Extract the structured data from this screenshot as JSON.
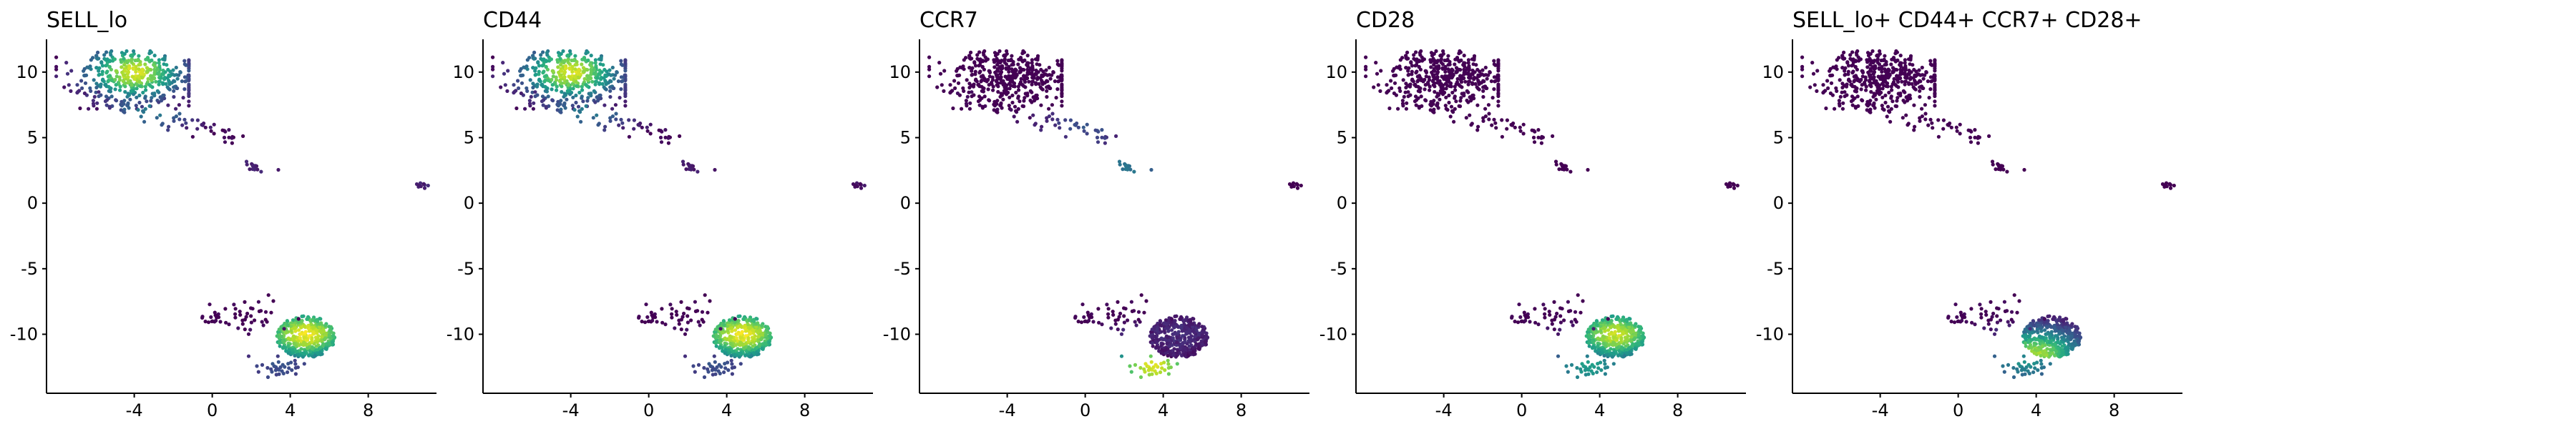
{
  "chart_data": [
    {
      "type": "scatter",
      "title": "SELL_lo",
      "xlabel": "",
      "ylabel": "",
      "xlim": [
        -8.5,
        11.5
      ],
      "ylim": [
        -14.5,
        12.5
      ],
      "x_ticks": [
        -4,
        0,
        4,
        8
      ],
      "x_tick_labels": [
        "-4",
        "0",
        "4",
        "8"
      ],
      "y_ticks": [
        10,
        5,
        0,
        -5,
        -10
      ],
      "y_tick_labels": [
        "10",
        "5",
        "0",
        "-5",
        "-10"
      ],
      "grid": false,
      "legend": "none",
      "colormap": "viridis",
      "clusters": [
        {
          "region": "upper",
          "center": [
            -4,
            9.6
          ],
          "spread": [
            2.2,
            1.5
          ],
          "points": 420,
          "hotspot": [
            -4,
            10
          ],
          "intensity": 0.95
        },
        {
          "region": "upper-tail",
          "center": [
            -1.5,
            7.2
          ],
          "spread": [
            1.6,
            0.5
          ],
          "points": 70,
          "hotspot": [
            -3,
            7.5
          ],
          "intensity": 0.45
        },
        {
          "region": "islet",
          "center": [
            2.2,
            2.8
          ],
          "spread": [
            0.25,
            0.25
          ],
          "points": 14,
          "hotspot": [
            2.2,
            2.8
          ],
          "intensity": 0.1
        },
        {
          "region": "far-right",
          "center": [
            10.8,
            1.4
          ],
          "spread": [
            0.2,
            0.12
          ],
          "points": 10,
          "hotspot": [
            10.8,
            1.4
          ],
          "intensity": 0.1
        },
        {
          "region": "lower",
          "center": [
            4.8,
            -10.2
          ],
          "spread": [
            1.5,
            1.6
          ],
          "points": 380,
          "hotspot": [
            4.8,
            -10
          ],
          "intensity": 0.98
        },
        {
          "region": "lower-left",
          "center": [
            2.0,
            -9.0
          ],
          "spread": [
            1.1,
            0.9
          ],
          "points": 90,
          "hotspot": [
            3.5,
            -12.5
          ],
          "intensity": 0.25
        }
      ]
    },
    {
      "type": "scatter",
      "title": "CD44",
      "xlabel": "",
      "ylabel": "",
      "xlim": [
        -8.5,
        11.5
      ],
      "ylim": [
        -14.5,
        12.5
      ],
      "x_ticks": [
        -4,
        0,
        4,
        8
      ],
      "x_tick_labels": [
        "-4",
        "0",
        "4",
        "8"
      ],
      "y_ticks": [
        10,
        5,
        0,
        -5,
        -10
      ],
      "y_tick_labels": [
        "10",
        "5",
        "0",
        "-5",
        "-10"
      ],
      "grid": false,
      "legend": "none",
      "colormap": "viridis",
      "clusters": [
        {
          "region": "upper",
          "center": [
            -4,
            9.6
          ],
          "spread": [
            2.2,
            1.5
          ],
          "points": 420,
          "hotspot": [
            -4,
            10
          ],
          "intensity": 0.95
        },
        {
          "region": "upper-tail",
          "center": [
            -1.5,
            7.2
          ],
          "spread": [
            1.6,
            0.5
          ],
          "points": 70,
          "hotspot": [
            -3,
            7.5
          ],
          "intensity": 0.45
        },
        {
          "region": "islet",
          "center": [
            2.2,
            2.8
          ],
          "spread": [
            0.25,
            0.25
          ],
          "points": 14,
          "hotspot": [
            2.2,
            2.8
          ],
          "intensity": 0.08
        },
        {
          "region": "far-right",
          "center": [
            10.8,
            1.4
          ],
          "spread": [
            0.2,
            0.12
          ],
          "points": 10,
          "hotspot": [
            10.8,
            1.4
          ],
          "intensity": 0.05
        },
        {
          "region": "lower",
          "center": [
            4.8,
            -10.2
          ],
          "spread": [
            1.5,
            1.6
          ],
          "points": 380,
          "hotspot": [
            4.8,
            -10
          ],
          "intensity": 0.98
        },
        {
          "region": "lower-left",
          "center": [
            2.0,
            -9.0
          ],
          "spread": [
            1.1,
            0.9
          ],
          "points": 90,
          "hotspot": [
            3.5,
            -12.5
          ],
          "intensity": 0.25
        }
      ]
    },
    {
      "type": "scatter",
      "title": "CCR7",
      "xlabel": "",
      "ylabel": "",
      "xlim": [
        -8.5,
        11.5
      ],
      "ylim": [
        -14.5,
        12.5
      ],
      "x_ticks": [
        -4,
        0,
        4,
        8
      ],
      "x_tick_labels": [
        "-4",
        "0",
        "4",
        "8"
      ],
      "y_ticks": [
        10,
        5,
        0,
        -5,
        -10
      ],
      "y_tick_labels": [
        "10",
        "5",
        "0",
        "-5",
        "-10"
      ],
      "grid": false,
      "legend": "none",
      "colormap": "viridis",
      "clusters": [
        {
          "region": "upper",
          "center": [
            -4,
            9.6
          ],
          "spread": [
            2.2,
            1.5
          ],
          "points": 420,
          "hotspot": [
            -4,
            10
          ],
          "intensity": 0.0
        },
        {
          "region": "upper-tail",
          "center": [
            -1.5,
            7.2
          ],
          "spread": [
            1.6,
            0.5
          ],
          "points": 70,
          "hotspot": [
            0,
            6
          ],
          "intensity": 0.25
        },
        {
          "region": "islet",
          "center": [
            2.2,
            2.8
          ],
          "spread": [
            0.25,
            0.25
          ],
          "points": 14,
          "hotspot": [
            2.2,
            2.8
          ],
          "intensity": 0.4
        },
        {
          "region": "far-right",
          "center": [
            10.8,
            1.4
          ],
          "spread": [
            0.2,
            0.12
          ],
          "points": 10,
          "hotspot": [
            10.8,
            1.4
          ],
          "intensity": 0.0
        },
        {
          "region": "lower",
          "center": [
            4.8,
            -10.2
          ],
          "spread": [
            1.5,
            1.6
          ],
          "points": 380,
          "hotspot": [
            4.8,
            -10
          ],
          "intensity": 0.12
        },
        {
          "region": "lower-left",
          "center": [
            2.0,
            -9.0
          ],
          "spread": [
            1.1,
            0.9
          ],
          "points": 90,
          "hotspot": [
            3.5,
            -12.5
          ],
          "intensity": 0.95
        }
      ]
    },
    {
      "type": "scatter",
      "title": "CD28",
      "xlabel": "",
      "ylabel": "",
      "xlim": [
        -8.5,
        11.5
      ],
      "ylim": [
        -14.5,
        12.5
      ],
      "x_ticks": [
        -4,
        0,
        4,
        8
      ],
      "x_tick_labels": [
        "-4",
        "0",
        "4",
        "8"
      ],
      "y_ticks": [
        10,
        5,
        0,
        -5,
        -10
      ],
      "y_tick_labels": [
        "10",
        "5",
        "0",
        "-5",
        "-10"
      ],
      "grid": false,
      "legend": "none",
      "colormap": "viridis",
      "clusters": [
        {
          "region": "upper",
          "center": [
            -4,
            9.6
          ],
          "spread": [
            2.2,
            1.5
          ],
          "points": 420,
          "hotspot": [
            -4,
            10
          ],
          "intensity": 0.0
        },
        {
          "region": "upper-tail",
          "center": [
            -1.5,
            7.2
          ],
          "spread": [
            1.6,
            0.5
          ],
          "points": 70,
          "hotspot": [
            -3,
            7.5
          ],
          "intensity": 0.0
        },
        {
          "region": "islet",
          "center": [
            2.2,
            2.8
          ],
          "spread": [
            0.25,
            0.25
          ],
          "points": 14,
          "hotspot": [
            2.2,
            2.8
          ],
          "intensity": 0.0
        },
        {
          "region": "far-right",
          "center": [
            10.8,
            1.4
          ],
          "spread": [
            0.2,
            0.12
          ],
          "points": 10,
          "hotspot": [
            10.8,
            1.4
          ],
          "intensity": 0.0
        },
        {
          "region": "lower",
          "center": [
            4.8,
            -10.2
          ],
          "spread": [
            1.5,
            1.6
          ],
          "points": 380,
          "hotspot": [
            4.8,
            -10
          ],
          "intensity": 0.92
        },
        {
          "region": "lower-left",
          "center": [
            2.0,
            -9.0
          ],
          "spread": [
            1.1,
            0.9
          ],
          "points": 90,
          "hotspot": [
            3.5,
            -12.5
          ],
          "intensity": 0.55
        }
      ]
    },
    {
      "type": "scatter",
      "title": "SELL_lo+ CD44+ CCR7+ CD28+",
      "xlabel": "",
      "ylabel": "",
      "xlim": [
        -8.5,
        11.5
      ],
      "ylim": [
        -14.5,
        12.5
      ],
      "x_ticks": [
        -4,
        0,
        4,
        8
      ],
      "x_tick_labels": [
        "-4",
        "0",
        "4",
        "8"
      ],
      "y_ticks": [
        10,
        5,
        0,
        -5,
        -10
      ],
      "y_tick_labels": [
        "10",
        "5",
        "0",
        "-5",
        "-10"
      ],
      "grid": false,
      "legend": "none",
      "colormap": "viridis",
      "clusters": [
        {
          "region": "upper",
          "center": [
            -4,
            9.6
          ],
          "spread": [
            2.2,
            1.5
          ],
          "points": 420,
          "hotspot": [
            -4,
            10
          ],
          "intensity": 0.0
        },
        {
          "region": "upper-tail",
          "center": [
            -1.5,
            7.2
          ],
          "spread": [
            1.6,
            0.5
          ],
          "points": 70,
          "hotspot": [
            -3,
            7.5
          ],
          "intensity": 0.0
        },
        {
          "region": "islet",
          "center": [
            2.2,
            2.8
          ],
          "spread": [
            0.25,
            0.25
          ],
          "points": 14,
          "hotspot": [
            2.2,
            2.8
          ],
          "intensity": 0.0
        },
        {
          "region": "far-right",
          "center": [
            10.8,
            1.4
          ],
          "spread": [
            0.2,
            0.12
          ],
          "points": 10,
          "hotspot": [
            10.8,
            1.4
          ],
          "intensity": 0.0
        },
        {
          "region": "lower",
          "center": [
            4.8,
            -10.2
          ],
          "spread": [
            1.5,
            1.6
          ],
          "points": 380,
          "hotspot": [
            4.0,
            -11.5
          ],
          "intensity": 0.85
        },
        {
          "region": "lower-left",
          "center": [
            2.0,
            -9.0
          ],
          "spread": [
            1.1,
            0.9
          ],
          "points": 90,
          "hotspot": [
            3.5,
            -12.0
          ],
          "intensity": 0.5
        }
      ]
    }
  ]
}
